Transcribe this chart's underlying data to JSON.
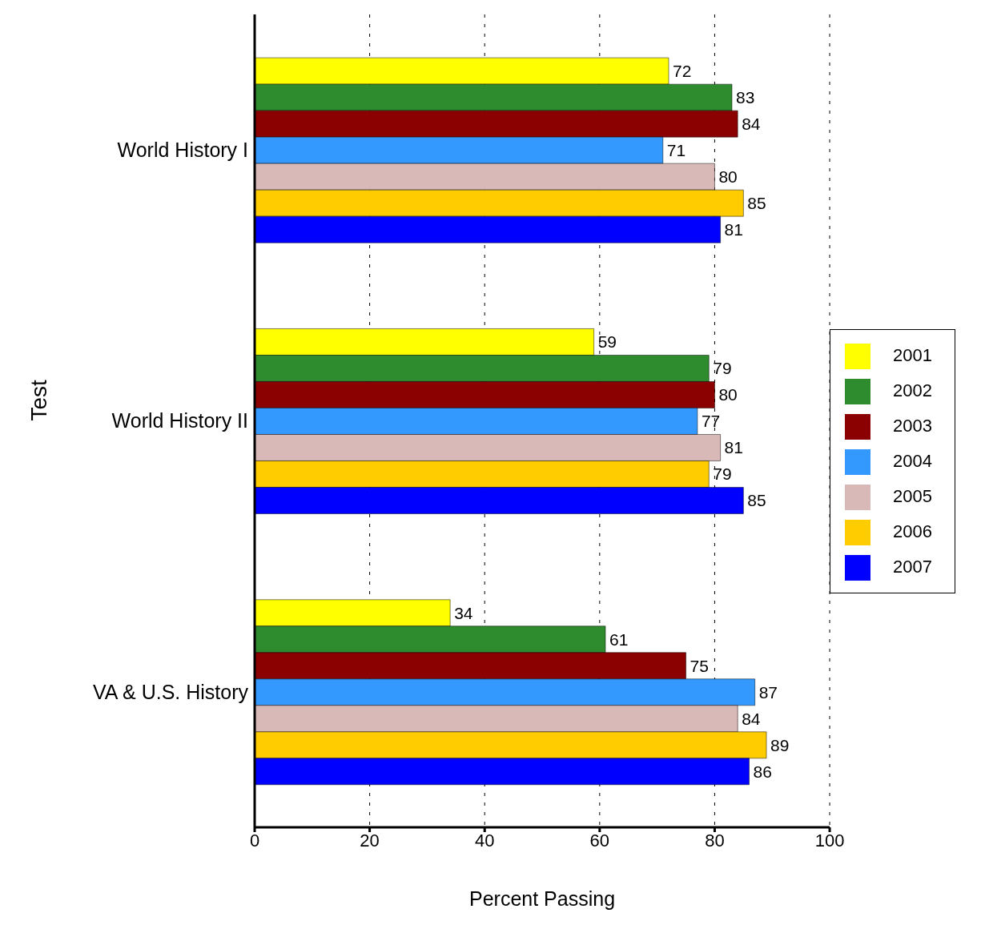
{
  "chart_data": {
    "type": "bar",
    "orientation": "horizontal",
    "xlabel": "Percent Passing",
    "ylabel": "Test",
    "categories": [
      "World History I",
      "World History II",
      "VA & U.S. History"
    ],
    "series": [
      {
        "name": "2001",
        "color": "#ffff00",
        "values": [
          72,
          59,
          34
        ]
      },
      {
        "name": "2002",
        "color": "#2e8b2e",
        "values": [
          83,
          79,
          61
        ]
      },
      {
        "name": "2003",
        "color": "#8b0000",
        "values": [
          84,
          80,
          75
        ]
      },
      {
        "name": "2004",
        "color": "#3399ff",
        "values": [
          71,
          77,
          87
        ]
      },
      {
        "name": "2005",
        "color": "#d9b8b8",
        "values": [
          80,
          81,
          84
        ]
      },
      {
        "name": "2006",
        "color": "#ffcc00",
        "values": [
          85,
          79,
          89
        ]
      },
      {
        "name": "2007",
        "color": "#0000ff",
        "values": [
          81,
          85,
          86
        ]
      }
    ],
    "xlim": [
      0,
      100
    ],
    "xticks": [
      0,
      20,
      40,
      60,
      80,
      100
    ],
    "grid": "x",
    "legend": "right",
    "data_labels": true
  }
}
